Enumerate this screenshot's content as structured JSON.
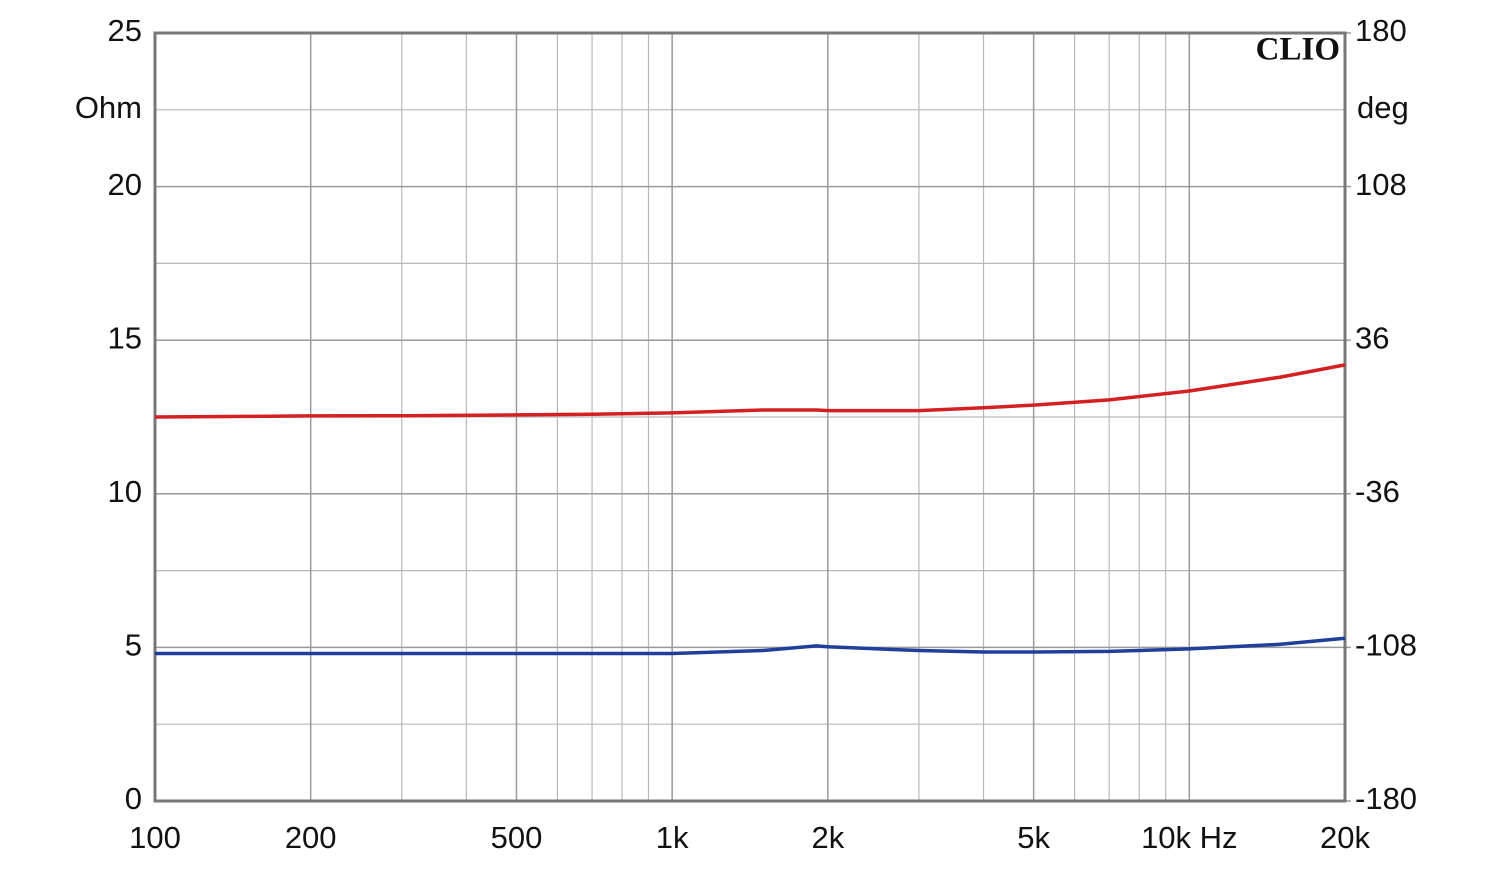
{
  "chart_data": {
    "type": "line",
    "brand": "CLIO",
    "y_label": "Ohm",
    "y2_label": "deg",
    "log_x": true,
    "grid": true,
    "xlim": [
      100,
      20000
    ],
    "xticks": [
      100,
      200,
      500,
      {
        "value": 1000,
        "label": "1k"
      },
      {
        "value": 2000,
        "label": "2k"
      },
      {
        "value": 5000,
        "label": "5k"
      },
      {
        "value": 10000,
        "label": "10k Hz"
      },
      {
        "value": 20000,
        "label": "20k"
      }
    ],
    "x_minor_grid": [
      300,
      400,
      600,
      700,
      800,
      900,
      3000,
      4000,
      6000,
      7000,
      8000,
      9000
    ],
    "ylim": [
      0,
      25
    ],
    "yticks": [
      0,
      5,
      10,
      15,
      20,
      25
    ],
    "y_minor_grid": [
      2.5,
      7.5,
      12.5,
      17.5,
      22.5
    ],
    "y2lim": [
      -180,
      180
    ],
    "y2ticks": [
      -180,
      -108,
      -36,
      36,
      108,
      180
    ],
    "x": [
      100,
      150,
      200,
      300,
      500,
      700,
      1000,
      1500,
      1900,
      2000,
      2500,
      3000,
      4000,
      5000,
      7000,
      10000,
      15000,
      20000
    ],
    "series": [
      {
        "color": "#1f3f9a",
        "values": [
          4.8,
          4.8,
          4.8,
          4.8,
          4.8,
          4.8,
          4.8,
          4.9,
          5.05,
          5.02,
          4.95,
          4.9,
          4.85,
          4.85,
          4.87,
          4.95,
          5.1,
          5.3
        ]
      },
      {
        "color": "#d42020",
        "axis": "y2",
        "values": [
          0,
          0.3,
          0.5,
          0.6,
          1,
          1.3,
          1.9,
          3.3,
          3.3,
          3,
          3,
          3,
          4.3,
          5.6,
          8,
          12.2,
          18.7,
          24.4
        ]
      }
    ]
  }
}
